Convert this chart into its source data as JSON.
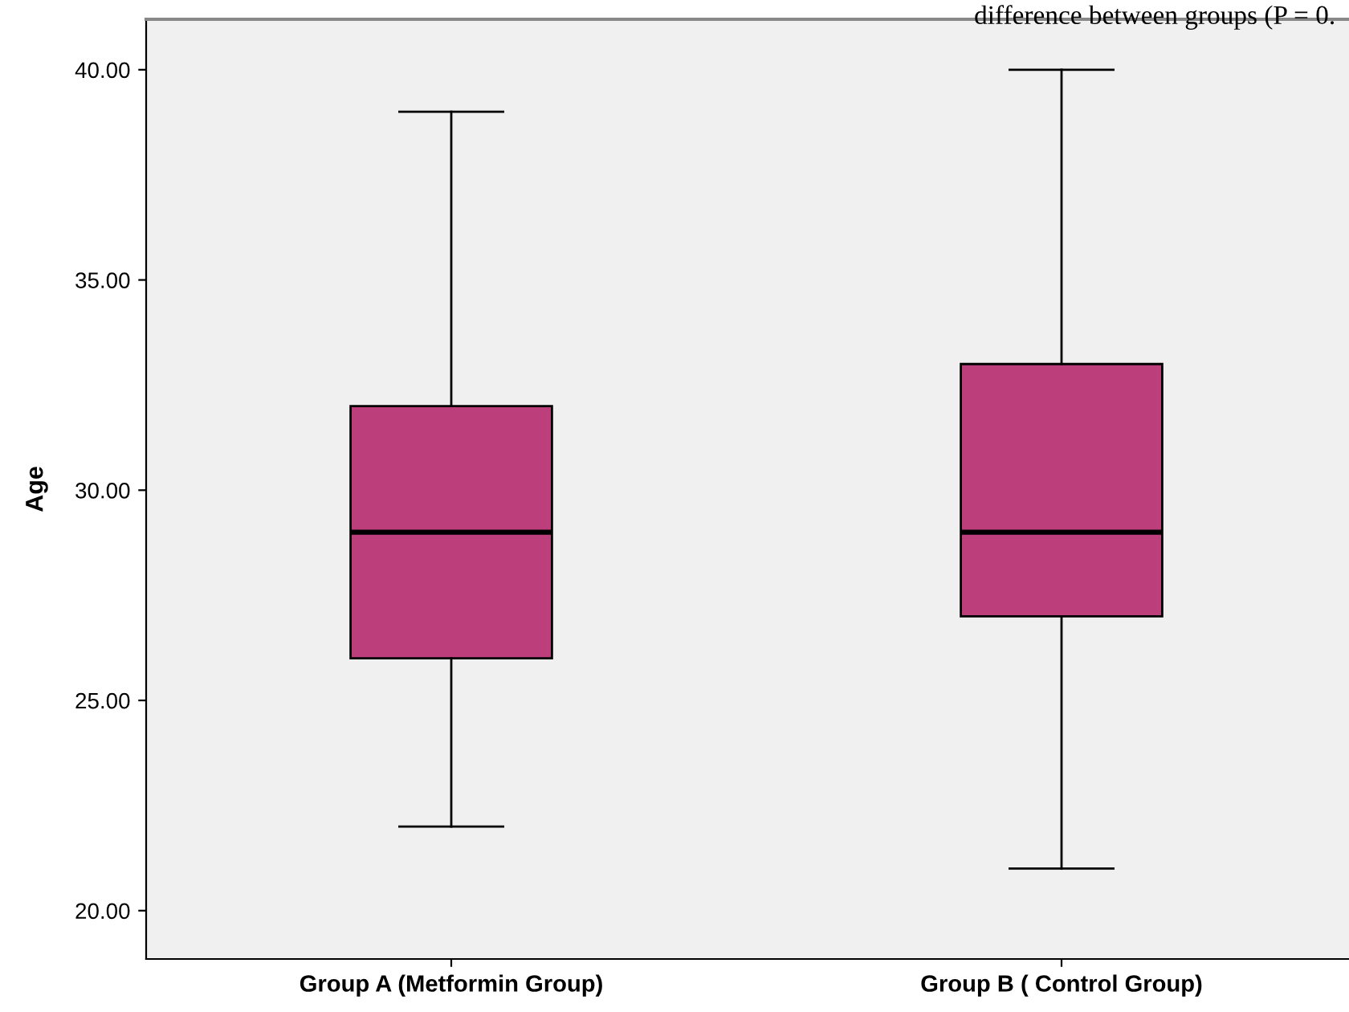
{
  "chart_data": {
    "type": "box",
    "ylabel": "Age",
    "categories": [
      "Group A (Metformin Group)",
      "Group B ( Control Group)"
    ],
    "boxes": [
      {
        "low": 22,
        "q1": 26,
        "median": 29,
        "q3": 32,
        "high": 39
      },
      {
        "low": 21,
        "q1": 27,
        "median": 29,
        "q3": 33,
        "high": 40
      }
    ],
    "color": "#bc3f7c",
    "ylim": [
      18.85,
      41.2
    ],
    "yticks": [
      {
        "value": 20,
        "label": "20.00"
      },
      {
        "value": 25,
        "label": "25.00"
      },
      {
        "value": 30,
        "label": "30.00"
      },
      {
        "value": 35,
        "label": "35.00"
      },
      {
        "value": 40,
        "label": "40.00"
      }
    ],
    "grid": false,
    "annotations": [
      "difference between groups (P = 0."
    ]
  }
}
